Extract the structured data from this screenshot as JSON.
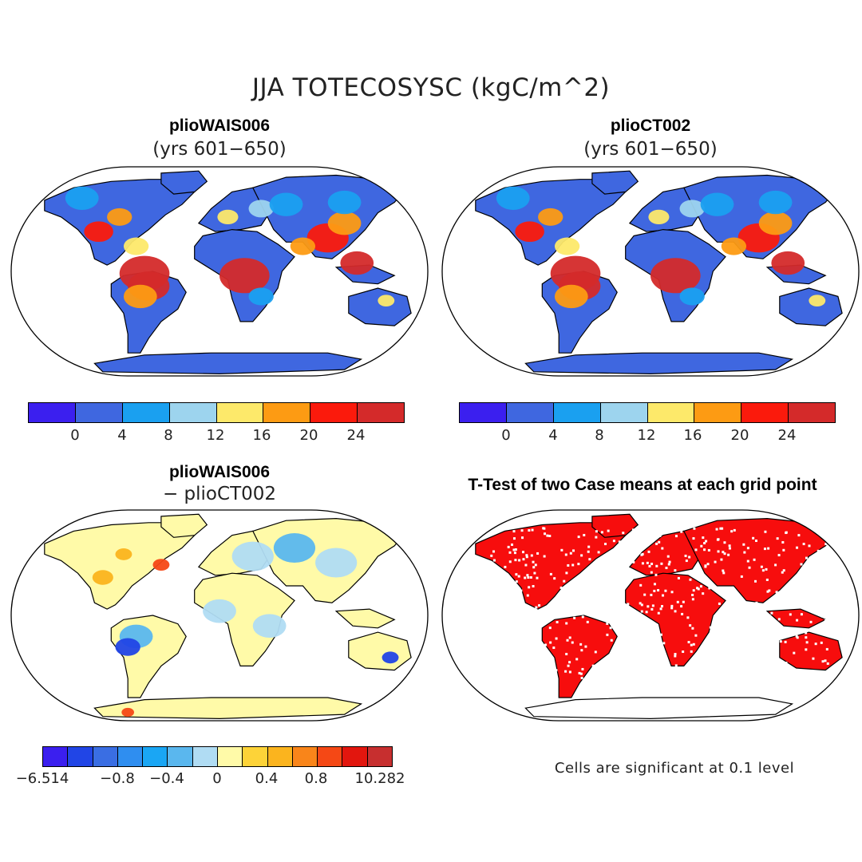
{
  "main_title": "JJA TOTECOSYSC (kgC/m^2)",
  "panels": [
    {
      "title": "plioWAIS006",
      "subtitle": "(yrs 601−650)"
    },
    {
      "title": "plioCT002",
      "subtitle": "(yrs 601−650)"
    },
    {
      "title": "plioWAIS006",
      "subtitle": "− plioCT002"
    },
    {
      "title": "T-Test of two Case means at each grid point",
      "subtitle": ""
    }
  ],
  "colorbar_abs": {
    "colors": [
      "#3b1fef",
      "#3f67e0",
      "#1aa0f0",
      "#9dd4ee",
      "#fde96a",
      "#fd9b13",
      "#fb1a0c",
      "#d42a2a"
    ],
    "tick_labels": [
      "0",
      "4",
      "8",
      "12",
      "16",
      "20",
      "24"
    ]
  },
  "colorbar_diff": {
    "colors": [
      "#3b1fef",
      "#2145e6",
      "#3a6ee3",
      "#2f8ef0",
      "#1aa6f4",
      "#5ab7ee",
      "#b0dcf3",
      "#fffaa8",
      "#fdd338",
      "#fbb41e",
      "#f9851a",
      "#f54815",
      "#e2160e",
      "#c72f2f"
    ],
    "tick_labels": [
      "−6.514",
      "−0.8",
      "−0.4",
      "0",
      "0.4",
      "0.8",
      "10.282"
    ]
  },
  "significance_note": "Cells are significant at 0.1 level",
  "map_colors": {
    "ocean": "#ffffff",
    "land_low": "#3f67e0",
    "land_mid": "#1aa0f0",
    "land_light": "#9dd4ee",
    "yellow": "#fde96a",
    "orange": "#fd9b13",
    "red": "#fb1a0c",
    "darkred": "#d42a2a",
    "diff_base": "#fffaa8",
    "diff_lightblue": "#b0dcf3",
    "diff_blue": "#5ab7ee",
    "diff_dkblue": "#2145e6",
    "diff_orange": "#fbb41e",
    "diff_red": "#f54815",
    "sig_red": "#f70d0d",
    "outline": "#000000"
  }
}
